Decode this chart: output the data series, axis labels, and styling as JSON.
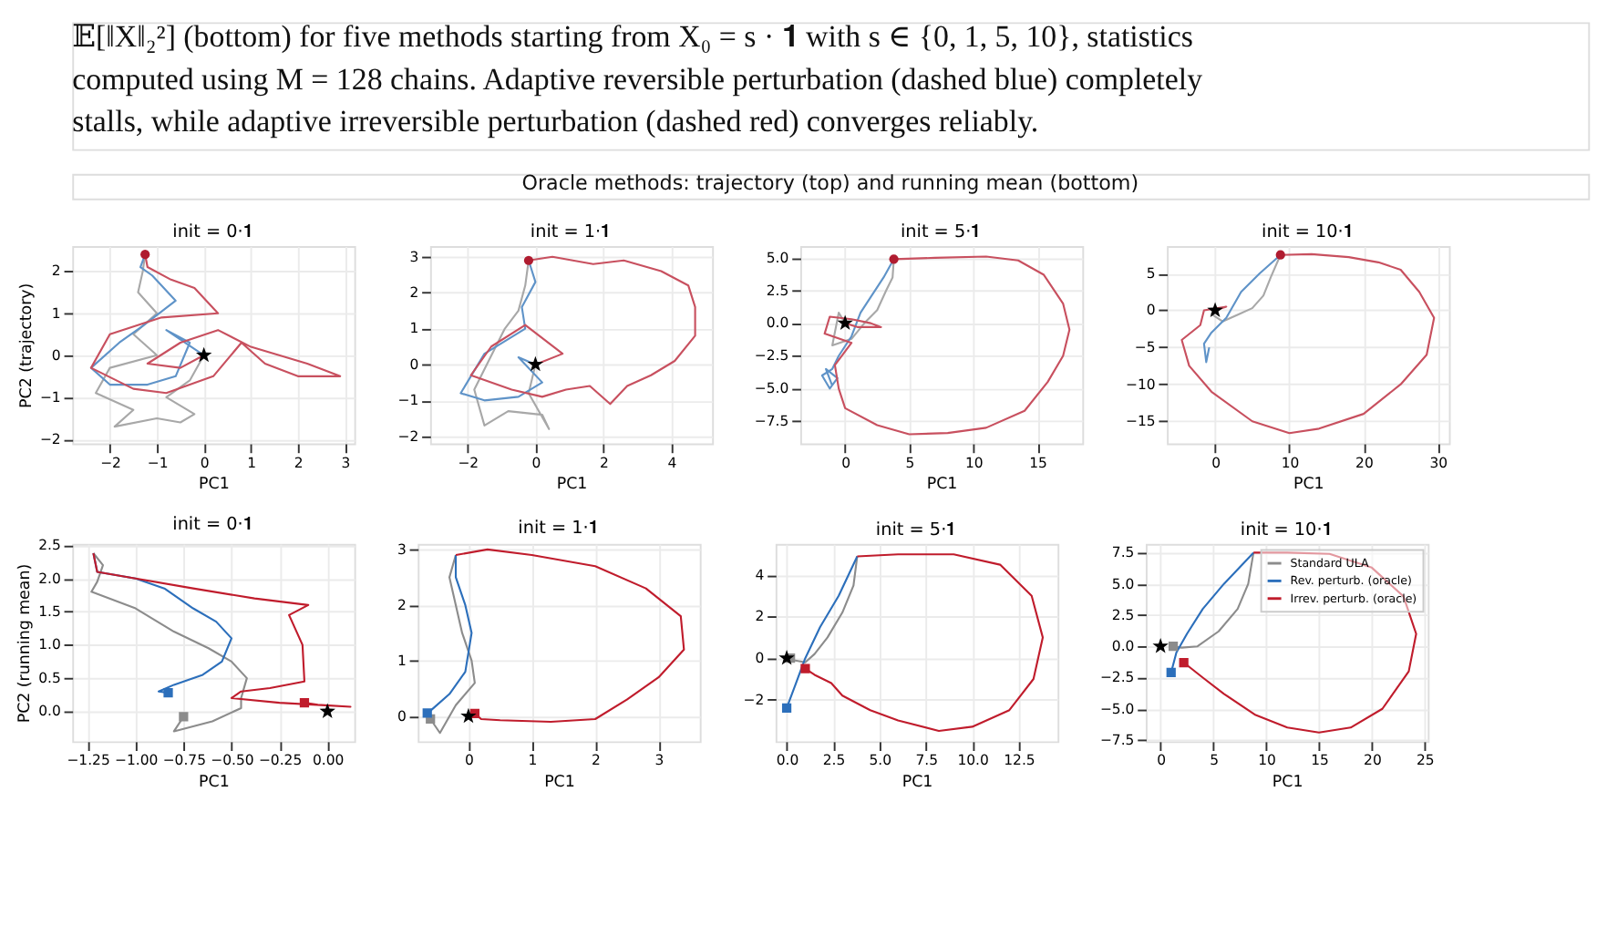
{
  "chart_data": [
    {
      "type": "line",
      "title": "init = 0·𝟏",
      "xlabel": "PC1",
      "ylabel": "PC2 (trajectory)",
      "grid": true,
      "annotations": [
        "𝔼[‖X‖₂²] (bottom) for five methods starting from X₀ = s · 𝟏 with s ∈ {0, 1, 5, 10}, statistics",
        "computed using M = 128 chains. Adaptive reversible perturbation (dashed blue) completely",
        "stalls, while adaptive irreversible perturbation (dashed red) converges reliably.",
        "Oracle methods: trajectory (top) and running mean (bottom)"
      ],
      "xlim": [
        -2.8,
        3.2
      ],
      "xticks": [
        {
          "value": -2,
          "label": "−2"
        },
        {
          "value": -1,
          "label": "−1"
        },
        0,
        1,
        2,
        3
      ],
      "ylim": [
        -2.1,
        2.6
      ],
      "yticks": [
        {
          "value": -2,
          "label": "−2"
        },
        {
          "value": -1,
          "label": "−1"
        },
        0,
        1,
        2
      ],
      "series": [
        {
          "color": "#a8a8a8",
          "x": [
            -1.25,
            -1.3,
            -1.4,
            -1.0,
            -1.5,
            -1.0,
            -2.0,
            -2.3,
            -1.5,
            -1.9,
            -1.0,
            -0.5,
            -0.2,
            -0.8,
            -0.3,
            0.0
          ],
          "values": [
            2.4,
            2.0,
            1.5,
            1.0,
            0.5,
            0.0,
            -0.3,
            -0.9,
            -1.3,
            -1.7,
            -1.5,
            -1.6,
            -1.4,
            -1.0,
            -0.6,
            0.0
          ]
        },
        {
          "color": "#5f93c8",
          "x": [
            -1.25,
            -1.35,
            -1.1,
            -0.6,
            -1.3,
            -1.8,
            -2.4,
            -2.0,
            -1.2,
            -0.6,
            -0.3,
            -0.8,
            0.0
          ],
          "values": [
            2.4,
            2.1,
            1.9,
            1.3,
            0.7,
            0.3,
            -0.3,
            -0.7,
            -0.7,
            -0.5,
            0.3,
            0.6,
            0.0
          ]
        },
        {
          "color": "#c8505f",
          "x": [
            -1.25,
            -1.2,
            -0.7,
            -0.2,
            0.3,
            -0.9,
            -2.0,
            -2.4,
            -1.5,
            -0.8,
            0.2,
            0.8,
            1.3,
            2.0,
            2.5,
            2.9,
            2.2,
            1.0,
            0.3,
            -0.5,
            -1.2,
            -0.5,
            0.0
          ],
          "values": [
            2.4,
            2.1,
            1.8,
            1.6,
            1.0,
            0.9,
            0.5,
            -0.3,
            -0.8,
            -0.9,
            -0.5,
            0.3,
            -0.2,
            -0.5,
            -0.5,
            -0.5,
            -0.2,
            0.2,
            0.6,
            0.3,
            -0.2,
            -0.3,
            0.0
          ]
        },
        {
          "type": "scatter",
          "marker": "circle",
          "color": "#b01c30",
          "x": [
            -1.25
          ],
          "values": [
            2.4
          ]
        },
        {
          "type": "scatter",
          "marker": "star",
          "color": "#000000",
          "x": [
            0
          ],
          "values": [
            0
          ]
        }
      ]
    },
    {
      "type": "line",
      "title": "init = 1·𝟏",
      "xlabel": "PC1",
      "grid": true,
      "xlim": [
        -3.1,
        5.2
      ],
      "xticks": [
        {
          "value": -2,
          "label": "−2"
        },
        0,
        2,
        4
      ],
      "ylim": [
        -2.2,
        3.3
      ],
      "yticks": [
        {
          "value": -2,
          "label": "−2"
        },
        {
          "value": -1,
          "label": "−1"
        },
        0,
        1,
        2,
        3
      ],
      "series": [
        {
          "color": "#a8a8a8",
          "x": [
            -0.2,
            -0.3,
            -0.5,
            -0.9,
            -1.8,
            -1.5,
            -0.8,
            0.2,
            0.4,
            -0.2,
            0.0
          ],
          "values": [
            2.9,
            2.2,
            1.5,
            1.0,
            -0.7,
            -1.7,
            -1.3,
            -1.4,
            -1.8,
            -0.8,
            0.0
          ]
        },
        {
          "color": "#5f93c8",
          "x": [
            -0.2,
            0.0,
            -0.4,
            -0.3,
            -1.5,
            -2.2,
            -1.5,
            -0.5,
            0.2,
            -0.5,
            0.0
          ],
          "values": [
            2.9,
            2.3,
            1.6,
            1.0,
            0.3,
            -0.8,
            -1.0,
            -0.9,
            -0.5,
            0.2,
            0.0
          ]
        },
        {
          "color": "#c8505f",
          "x": [
            -0.2,
            0.5,
            1.7,
            2.6,
            3.7,
            4.5,
            4.7,
            4.7,
            4.1,
            3.4,
            2.7,
            2.2,
            1.6,
            0.9,
            0.2,
            -0.7,
            -1.9,
            -1.3,
            -0.3,
            0.8,
            0.0
          ],
          "values": [
            2.9,
            3.0,
            2.8,
            2.9,
            2.6,
            2.2,
            1.6,
            0.8,
            0.1,
            -0.3,
            -0.6,
            -1.1,
            -0.6,
            -0.7,
            -0.9,
            -0.7,
            -0.3,
            0.5,
            1.1,
            0.3,
            0.0
          ]
        },
        {
          "type": "scatter",
          "marker": "circle",
          "color": "#b01c30",
          "x": [
            -0.2
          ],
          "values": [
            2.9
          ]
        },
        {
          "type": "scatter",
          "marker": "star",
          "color": "#000000",
          "x": [
            0
          ],
          "values": [
            0
          ]
        }
      ]
    },
    {
      "type": "line",
      "title": "init = 5·𝟏",
      "xlabel": "PC1",
      "grid": true,
      "xlim": [
        -3.5,
        18.5
      ],
      "xticks": [
        0,
        5,
        10,
        15
      ],
      "ylim": [
        -9.2,
        5.9
      ],
      "yticks": [
        {
          "value": -7.5,
          "label": "−7.5"
        },
        {
          "value": -5,
          "label": "−5.0"
        },
        {
          "value": -2.5,
          "label": "−2.5"
        },
        {
          "value": 0,
          "label": "0.0"
        },
        2.5,
        {
          "value": 5,
          "label": "5.0"
        }
      ],
      "series": [
        {
          "color": "#a8a8a8",
          "x": [
            3.8,
            3.7,
            3.2,
            2.5,
            1.5,
            0.5,
            -1.0,
            -0.5,
            0.0
          ],
          "values": [
            4.9,
            3.5,
            2.5,
            1.0,
            0.0,
            -1.2,
            -1.7,
            0.8,
            0.0
          ]
        },
        {
          "color": "#5f93c8",
          "x": [
            3.8,
            3.0,
            2.0,
            1.2,
            0.5,
            -0.5,
            -1.0,
            -1.8,
            -1.2,
            -0.6,
            -1.5,
            -1.0
          ],
          "values": [
            4.9,
            3.5,
            2.0,
            0.8,
            -1.0,
            -2.5,
            -3.5,
            -4.0,
            -5.0,
            -4.2,
            -3.5,
            -4.8
          ]
        },
        {
          "color": "#c8505f",
          "x": [
            3.8,
            7,
            11,
            13.5,
            15.5,
            17,
            17.5,
            17,
            15.8,
            14,
            11,
            8,
            5,
            2.5,
            0,
            -0.5,
            -0.8,
            0.5,
            -1.6,
            -1.2,
            0.5,
            2,
            2.8,
            1.0,
            0.0
          ],
          "values": [
            4.9,
            5.0,
            5.1,
            4.8,
            3.7,
            1.5,
            -0.5,
            -2.5,
            -4.5,
            -6.7,
            -8.0,
            -8.4,
            -8.5,
            -7.8,
            -6.5,
            -5.0,
            -3.2,
            -1.5,
            -0.8,
            0.5,
            0.3,
            0.0,
            -0.3,
            -0.3,
            0.0
          ]
        },
        {
          "type": "scatter",
          "marker": "circle",
          "color": "#b01c30",
          "x": [
            3.8
          ],
          "values": [
            4.9
          ]
        },
        {
          "type": "scatter",
          "marker": "star",
          "color": "#000000",
          "x": [
            0
          ],
          "values": [
            0
          ]
        }
      ]
    },
    {
      "type": "line",
      "title": "init = 10·𝟏",
      "xlabel": "PC1",
      "grid": true,
      "xlim": [
        -6.5,
        31.5
      ],
      "xticks": [
        0,
        10,
        20,
        30
      ],
      "ylim": [
        -18,
        8.7
      ],
      "yticks": [
        {
          "value": -15,
          "label": "−15"
        },
        {
          "value": -10,
          "label": "−10"
        },
        {
          "value": -5,
          "label": "−5"
        },
        0,
        5
      ],
      "series": [
        {
          "color": "#a8a8a8",
          "x": [
            8.8,
            7.5,
            6.5,
            5,
            3,
            1,
            -0.5,
            0.0
          ],
          "values": [
            7.5,
            4.5,
            2.0,
            0.3,
            -0.6,
            -1.5,
            -0.5,
            0.0
          ]
        },
        {
          "color": "#5f93c8",
          "x": [
            8.8,
            6,
            3.5,
            1.5,
            -0.5,
            -1.5,
            -1.2,
            -0.8
          ],
          "values": [
            7.5,
            5,
            2.5,
            -1,
            -3.0,
            -4.5,
            -7.0,
            -5.0
          ]
        },
        {
          "color": "#c8505f",
          "x": [
            8.8,
            13,
            18,
            22,
            25,
            27.5,
            29.5,
            28.5,
            25,
            20,
            14,
            10,
            5,
            -0.5,
            -3.5,
            -4.5,
            -2.0,
            -1.5,
            1.5,
            0.0
          ],
          "values": [
            7.5,
            7.6,
            7.2,
            6.5,
            5.5,
            2.5,
            -1,
            -6,
            -10,
            -14,
            -16,
            -16.6,
            -15.0,
            -11.0,
            -7.5,
            -4.0,
            -2.0,
            0.0,
            0.5,
            0.0
          ]
        },
        {
          "type": "scatter",
          "marker": "circle",
          "color": "#b01c30",
          "x": [
            8.8
          ],
          "values": [
            7.5
          ]
        },
        {
          "type": "scatter",
          "marker": "star",
          "color": "#000000",
          "x": [
            0
          ],
          "values": [
            0
          ]
        }
      ]
    },
    {
      "type": "line",
      "title": "init = 0·𝟏",
      "xlabel": "PC1",
      "ylabel": "PC2 (running mean)",
      "grid": true,
      "xlim": [
        -1.33,
        0.14
      ],
      "xticks": [
        {
          "value": -1.25,
          "label": "−1.25"
        },
        {
          "value": -1,
          "label": "−1.00"
        },
        {
          "value": -0.75,
          "label": "−0.75"
        },
        {
          "value": -0.5,
          "label": "−0.50"
        },
        {
          "value": -0.25,
          "label": "−0.25"
        },
        {
          "value": 0,
          "label": "0.00"
        }
      ],
      "ylim": [
        -0.45,
        2.52
      ],
      "yticks": [
        {
          "value": 0,
          "label": "0.0"
        },
        0.5,
        {
          "value": 1,
          "label": "1.0"
        },
        1.5,
        {
          "value": 2,
          "label": "2.0"
        },
        2.5
      ],
      "series": [
        {
          "color": "#8c8c8c",
          "x": [
            -1.22,
            -1.17,
            -1.2,
            -1.23,
            -1.0,
            -0.8,
            -0.62,
            -0.5,
            -0.42,
            -0.45,
            -0.45,
            -0.6,
            -0.8,
            -0.75
          ],
          "values": [
            2.38,
            2.2,
            1.95,
            1.8,
            1.55,
            1.2,
            0.95,
            0.75,
            0.5,
            0.2,
            0.05,
            -0.15,
            -0.3,
            -0.08
          ]
        },
        {
          "color": "#2c6fbb",
          "x": [
            -1.22,
            -1.2,
            -1.0,
            -0.85,
            -0.7,
            -0.58,
            -0.5,
            -0.55,
            -0.65,
            -0.8,
            -0.88,
            -0.83
          ],
          "values": [
            2.38,
            2.1,
            2.0,
            1.85,
            1.55,
            1.35,
            1.1,
            0.75,
            0.55,
            0.4,
            0.3,
            0.28
          ]
        },
        {
          "color": "#c01c2c",
          "x": [
            -1.22,
            -1.2,
            -1.0,
            -0.7,
            -0.38,
            -0.1,
            -0.2,
            -0.13,
            -0.12,
            -0.3,
            -0.45,
            -0.5,
            -0.25,
            0.12,
            -0.05,
            -0.12
          ],
          "values": [
            2.38,
            2.1,
            2.0,
            1.85,
            1.7,
            1.6,
            1.45,
            1.0,
            0.45,
            0.35,
            0.3,
            0.2,
            0.13,
            0.07,
            0.1,
            0.13
          ]
        },
        {
          "type": "scatter",
          "marker": "square",
          "colors": [
            "#8c8c8c",
            "#2c6fbb",
            "#c01c2c"
          ],
          "x": [
            -0.75,
            -0.83,
            -0.12
          ],
          "values": [
            -0.08,
            0.28,
            0.13
          ]
        },
        {
          "type": "scatter",
          "marker": "star",
          "color": "#000000",
          "x": [
            0
          ],
          "values": [
            0
          ]
        }
      ]
    },
    {
      "type": "line",
      "title": "init = 1·𝟏",
      "xlabel": "PC1",
      "grid": true,
      "xlim": [
        -0.8,
        3.65
      ],
      "xticks": [
        0,
        1,
        2,
        3
      ],
      "ylim": [
        -0.45,
        3.1
      ],
      "yticks": [
        0,
        1,
        2,
        3
      ],
      "series": [
        {
          "color": "#8c8c8c",
          "x": [
            -0.2,
            -0.3,
            -0.2,
            -0.1,
            0.05,
            0.1,
            -0.2,
            -0.45,
            -0.6
          ],
          "values": [
            2.9,
            2.5,
            2.0,
            1.5,
            1.0,
            0.6,
            0.2,
            -0.3,
            -0.05
          ]
        },
        {
          "color": "#2c6fbb",
          "x": [
            -0.2,
            -0.2,
            -0.05,
            0.05,
            -0.05,
            -0.3,
            -0.6,
            -0.65
          ],
          "values": [
            2.9,
            2.5,
            2.0,
            1.5,
            0.8,
            0.4,
            0.1,
            0.06
          ]
        },
        {
          "color": "#c01c2c",
          "x": [
            -0.2,
            0.3,
            1.0,
            2.0,
            2.8,
            3.35,
            3.4,
            3.0,
            2.5,
            2.0,
            1.3,
            0.5,
            0.2,
            0.1
          ],
          "values": [
            2.9,
            3.0,
            2.9,
            2.7,
            2.3,
            1.8,
            1.2,
            0.7,
            0.3,
            -0.05,
            -0.1,
            -0.07,
            -0.05,
            0.05
          ]
        },
        {
          "type": "scatter",
          "marker": "square",
          "colors": [
            "#8c8c8c",
            "#2c6fbb",
            "#c01c2c"
          ],
          "x": [
            -0.6,
            -0.65,
            0.1
          ],
          "values": [
            -0.05,
            0.06,
            0.05
          ]
        },
        {
          "type": "scatter",
          "marker": "star",
          "color": "#000000",
          "x": [
            0
          ],
          "values": [
            0
          ]
        }
      ]
    },
    {
      "type": "line",
      "title": "init = 5·𝟏",
      "xlabel": "PC1",
      "grid": true,
      "xlim": [
        -0.6,
        14.6
      ],
      "xticks": [
        {
          "value": 0,
          "label": "0.0"
        },
        2.5,
        {
          "value": 5,
          "label": "5.0"
        },
        7.5,
        {
          "value": 10,
          "label": "10.0"
        },
        12.5
      ],
      "ylim": [
        -4.0,
        5.5
      ],
      "yticks": [
        {
          "value": -2,
          "label": "−2"
        },
        0,
        2,
        4
      ],
      "series": [
        {
          "color": "#8c8c8c",
          "x": [
            3.8,
            3.6,
            3.0,
            2.2,
            1.5,
            1.0,
            0.4,
            0.2
          ],
          "values": [
            4.9,
            3.5,
            2.2,
            1.0,
            0.2,
            -0.2,
            -0.1,
            0
          ]
        },
        {
          "color": "#2c6fbb",
          "x": [
            3.8,
            2.8,
            1.8,
            1.0,
            0.5,
            0.0
          ],
          "values": [
            4.9,
            3.0,
            1.5,
            0.0,
            -1.2,
            -2.4
          ]
        },
        {
          "color": "#c01c2c",
          "x": [
            3.8,
            6,
            9,
            11.5,
            13.2,
            13.8,
            13.3,
            12,
            10,
            8.2,
            6,
            4.5,
            3,
            2.4,
            1.5,
            1.0
          ],
          "values": [
            4.9,
            5.0,
            5.0,
            4.5,
            3.0,
            1.0,
            -1.0,
            -2.5,
            -3.3,
            -3.5,
            -3.0,
            -2.5,
            -1.8,
            -1.2,
            -0.8,
            -0.5
          ]
        },
        {
          "type": "scatter",
          "marker": "square",
          "colors": [
            "#8c8c8c",
            "#2c6fbb",
            "#c01c2c"
          ],
          "x": [
            0.2,
            0.0,
            1.0
          ],
          "values": [
            0,
            -2.4,
            -0.5
          ]
        },
        {
          "type": "scatter",
          "marker": "star",
          "color": "#000000",
          "x": [
            0
          ],
          "values": [
            0
          ]
        }
      ]
    },
    {
      "type": "line",
      "title": "init = 10·𝟏",
      "xlabel": "PC1",
      "grid": true,
      "legend": "top right",
      "xlim": [
        -1.4,
        25.3
      ],
      "xticks": [
        0,
        5,
        10,
        15,
        20,
        25
      ],
      "ylim": [
        -7.6,
        8.2
      ],
      "yticks": [
        {
          "value": -7.5,
          "label": "−7.5"
        },
        {
          "value": -5,
          "label": "−5.0"
        },
        {
          "value": -2.5,
          "label": "−2.5"
        },
        {
          "value": 0,
          "label": "0.0"
        },
        2.5,
        {
          "value": 5,
          "label": "5.0"
        },
        7.5
      ],
      "series": [
        {
          "name": "Standard ULA",
          "color": "#8c8c8c",
          "x": [
            8.8,
            8.3,
            7.3,
            5.5,
            3.5,
            2,
            1.2
          ],
          "values": [
            7.5,
            5,
            3,
            1.2,
            0,
            -0.1,
            0
          ]
        },
        {
          "name": "Rev. perturb. (oracle)",
          "color": "#2c6fbb",
          "x": [
            8.8,
            6,
            4,
            2.5,
            1.5,
            1.0
          ],
          "values": [
            7.5,
            5,
            3,
            1,
            -0.5,
            -2.1
          ]
        },
        {
          "name": "Irrev. perturb. (oracle)",
          "color": "#c01c2c",
          "x": [
            8.8,
            12,
            16,
            20,
            23,
            24.2,
            23.5,
            21,
            18,
            15,
            12,
            9,
            6,
            4,
            2.5,
            2.2
          ],
          "values": [
            7.5,
            7.5,
            7.4,
            6.3,
            4.0,
            1,
            -2,
            -5,
            -6.5,
            -6.9,
            -6.5,
            -5.5,
            -3.8,
            -2.5,
            -1.5,
            -1.3
          ]
        },
        {
          "type": "scatter",
          "marker": "square",
          "colors": [
            "#8c8c8c",
            "#2c6fbb",
            "#c01c2c"
          ],
          "x": [
            1.2,
            1.0,
            2.2
          ],
          "values": [
            0,
            -2.1,
            -1.3
          ]
        },
        {
          "type": "scatter",
          "marker": "star",
          "color": "#000000",
          "x": [
            0
          ],
          "values": [
            0
          ]
        }
      ]
    }
  ]
}
